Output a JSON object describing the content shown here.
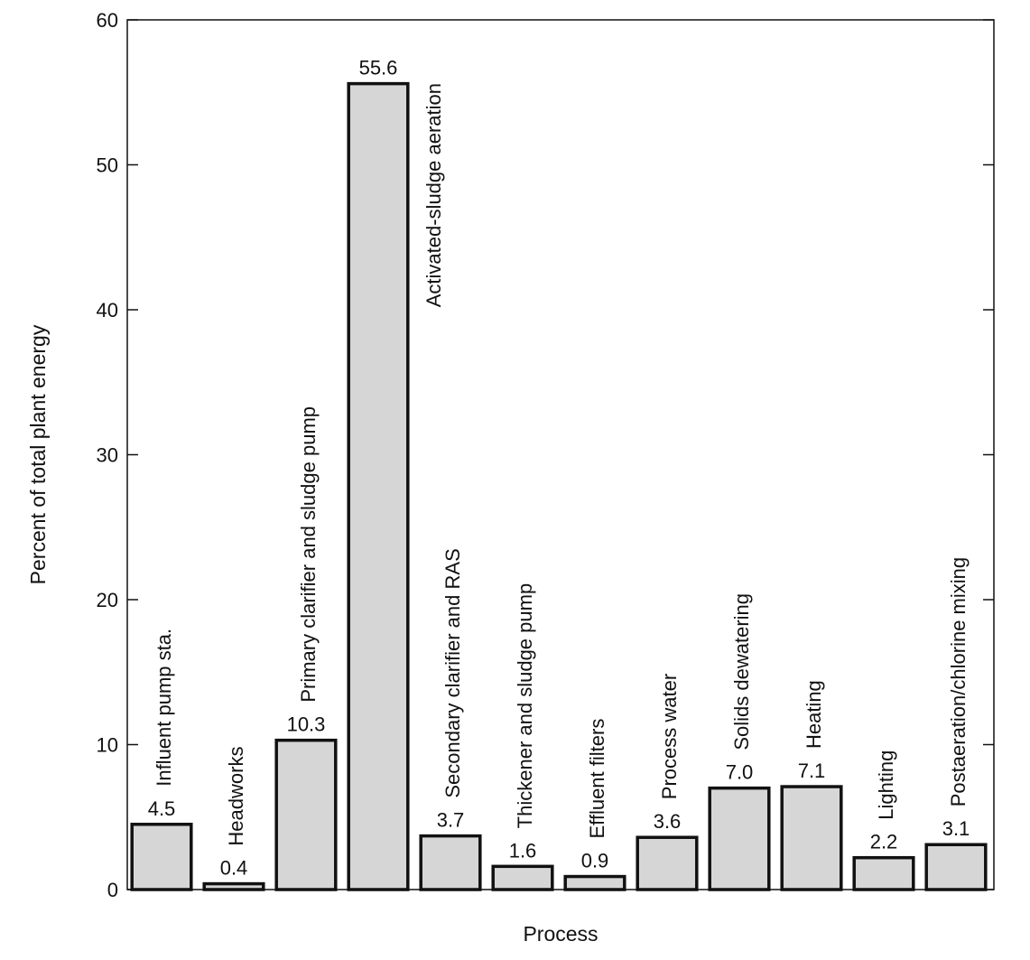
{
  "chart_data": {
    "type": "bar",
    "categories": [
      "Influent pump sta.",
      "Headworks",
      "Primary clarifier and sludge pump",
      "Activated-sludge aeration",
      "Secondary clarifier and RAS",
      "Thickener and sludge pump",
      "Effluent filters",
      "Process water",
      "Solids dewatering",
      "Heating",
      "Lighting",
      "Postaeration/chlorine mixing"
    ],
    "values": [
      4.5,
      0.4,
      10.3,
      55.6,
      3.7,
      1.6,
      0.9,
      3.6,
      7.0,
      7.1,
      2.2,
      3.1
    ],
    "value_labels": [
      "4.5",
      "0.4",
      "10.3",
      "55.6",
      "3.7",
      "1.6",
      "0.9",
      "3.6",
      "7.0",
      "7.1",
      "2.2",
      "3.1"
    ],
    "xlabel": "Process",
    "ylabel": "Percent of total plant energy",
    "ylim": [
      0,
      60
    ],
    "yticks": [
      0,
      10,
      20,
      30,
      40,
      50,
      60
    ],
    "ytick_labels": [
      "0",
      "10",
      "20",
      "30",
      "40",
      "50",
      "60"
    ],
    "grid": false,
    "legend": "none",
    "colors": {
      "bar_fill": "#d6d6d6",
      "bar_stroke": "#111111"
    }
  }
}
